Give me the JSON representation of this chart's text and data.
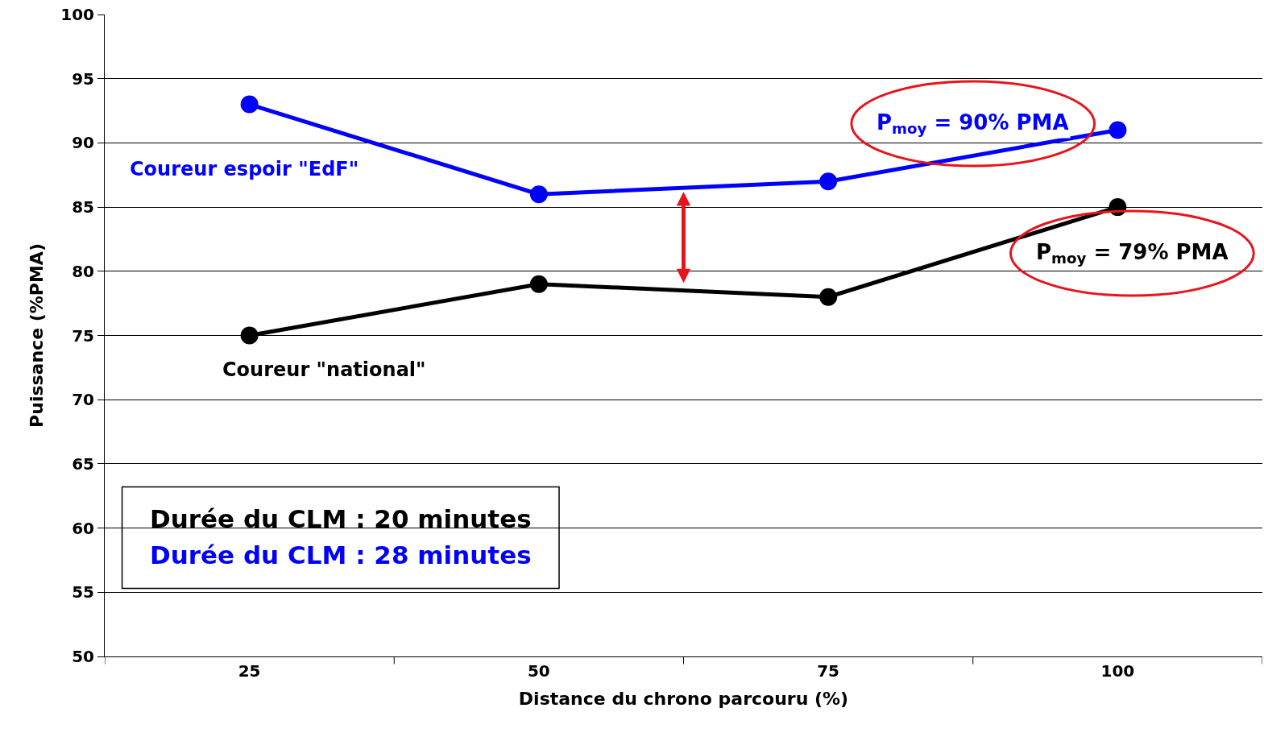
{
  "chart_data": {
    "type": "line",
    "xlabel": "Distance du chrono parcouru (%)",
    "ylabel": "Puissance (%PMA)",
    "categories": [
      "25",
      "50",
      "75",
      "100"
    ],
    "series": [
      {
        "name": "Coureur espoir \"EdF\"",
        "color": "#0000ff",
        "values": [
          93,
          86,
          87,
          91
        ]
      },
      {
        "name": "Coureur \"national\"",
        "color": "#000000",
        "values": [
          75,
          79,
          78,
          85
        ]
      }
    ],
    "ylim": [
      50,
      100
    ],
    "yticks": [
      50,
      55,
      60,
      65,
      70,
      75,
      80,
      85,
      90,
      95,
      100
    ],
    "grid": "y",
    "legend": false,
    "marker": "circle",
    "line_style": "solid",
    "annotations": [
      "P$_{moy}$ = 90% PMA",
      "P$_{moy}$ = 79% PMA",
      "Durée du CLM : 20 minutes",
      "Durée du CLM : 28 minutes"
    ]
  }
}
